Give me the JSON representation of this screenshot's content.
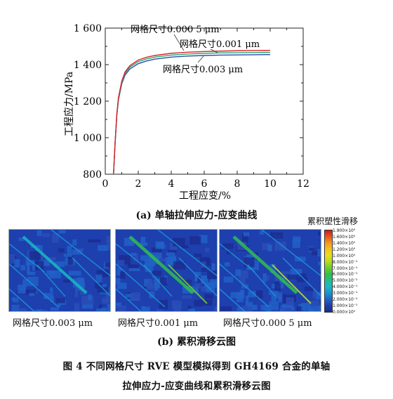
{
  "figure": {
    "subcaption_a": "(a) 单轴拉伸应力-应变曲线",
    "subcaption_b": "(b) 累积滑移云图",
    "caption_line1": "图 4  不同网格尺寸 RVE 模型模拟得到 GH4169 合金的单轴",
    "caption_line2": "拉伸应力-应变曲线和累积滑移云图"
  },
  "chart_data": {
    "type": "line",
    "xlabel": "工程应变/%",
    "ylabel": "工程应力/MPa",
    "xlim": [
      0,
      12
    ],
    "ylim": [
      800,
      1600
    ],
    "xticks": [
      0,
      2,
      4,
      6,
      8,
      10,
      12
    ],
    "yticks": [
      800,
      1000,
      1200,
      1400,
      1600
    ],
    "ytick_labels": [
      "800",
      "1 000",
      "1 200",
      "1 400",
      "1 600"
    ],
    "grid": false,
    "series": [
      {
        "name": "网格尺寸0.000 5 μm",
        "color": "#d8232a",
        "x": [
          0.5,
          0.6,
          0.7,
          0.8,
          1.0,
          1.2,
          1.5,
          2.0,
          2.5,
          3,
          4,
          5,
          6,
          7,
          8,
          9,
          10
        ],
        "y": [
          800,
          980,
          1130,
          1220,
          1310,
          1360,
          1395,
          1425,
          1440,
          1450,
          1462,
          1468,
          1472,
          1474,
          1476,
          1477,
          1478
        ]
      },
      {
        "name": "网格尺寸0.001 μm",
        "color": "#2aa66a",
        "x": [
          0.5,
          0.6,
          0.7,
          0.8,
          1.0,
          1.2,
          1.5,
          2.0,
          2.5,
          3,
          4,
          5,
          6,
          7,
          8,
          9,
          10
        ],
        "y": [
          800,
          978,
          1125,
          1215,
          1303,
          1352,
          1387,
          1416,
          1431,
          1441,
          1452,
          1458,
          1462,
          1464,
          1465,
          1466,
          1467
        ]
      },
      {
        "name": "网格尺寸0.003 μm",
        "color": "#2b4fa8",
        "x": [
          0.5,
          0.6,
          0.7,
          0.8,
          1.0,
          1.2,
          1.5,
          2.0,
          2.5,
          3,
          4,
          5,
          6,
          7,
          8,
          9,
          10
        ],
        "y": [
          800,
          975,
          1120,
          1208,
          1295,
          1343,
          1377,
          1405,
          1420,
          1430,
          1441,
          1447,
          1450,
          1452,
          1453,
          1454,
          1455
        ]
      }
    ],
    "annotations": [
      {
        "text": "网格尺寸0.000 5 μm",
        "color": "#111"
      },
      {
        "text": "网格尺寸0.001 μm",
        "color": "#111"
      },
      {
        "text": "网格尺寸0.003 μm",
        "color": "#111"
      }
    ]
  },
  "contour": {
    "colorbar_title": "累积塑性滑移",
    "colorbar_ticks": [
      "1.900×10⁰",
      "1.600×10⁰",
      "1.400×10⁰",
      "1.200×10⁰",
      "1.000×10⁰",
      "8.000×10⁻¹",
      "7.000×10⁻¹",
      "6.000×10⁻¹",
      "5.000×10⁻¹",
      "4.000×10⁻¹",
      "3.000×10⁻¹",
      "2.000×10⁻¹",
      "1.000×10⁻¹",
      "0.000×10⁰"
    ],
    "colorbar_colors": [
      "#c81e1e",
      "#e8561c",
      "#f19a1f",
      "#f3c21e",
      "#e6e01d",
      "#b4dc22",
      "#6ecb2c",
      "#2fbf4e",
      "#1cc08f",
      "#18b9c4",
      "#1a94d4",
      "#2063c8",
      "#1e3fae",
      "#1a2c8f"
    ],
    "panels": [
      {
        "label": "网格尺寸0.003 μm"
      },
      {
        "label": "网格尺寸0.001 μm"
      },
      {
        "label": "网格尺寸0.000 5 μm"
      }
    ]
  }
}
